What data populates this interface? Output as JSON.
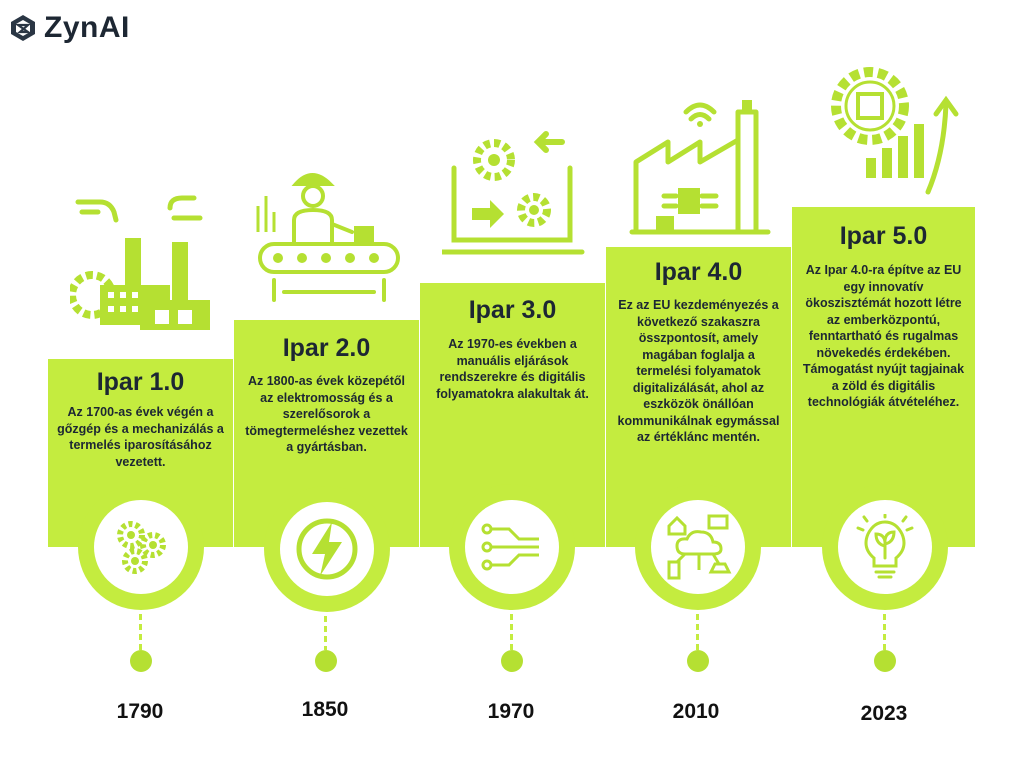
{
  "brand": {
    "name": "ZynAI"
  },
  "colors": {
    "accent": "#c4ec3f",
    "text": "#1d2733"
  },
  "stages": [
    {
      "title": "Ipar 1.0",
      "year": "1790",
      "description": "Az 1700-as évek végén a gőzgép és a mechanizálás a termelés iparosításához vezetett.",
      "illustration": "factory-gear-icon",
      "icon": "gears-icon"
    },
    {
      "title": "Ipar 2.0",
      "year": "1850",
      "description": "Az 1800-as évek közepétől az elektromosság és a szerelősorok a tömegtermeléshez vezettek a gyártásban.",
      "illustration": "assembly-line-worker-icon",
      "icon": "lightning-icon"
    },
    {
      "title": "Ipar 3.0",
      "year": "1970",
      "description": "Az 1970-es években a manuális eljárások rendszerekre és digitális folyamatokra alakultak át.",
      "illustration": "laptop-gears-icon",
      "icon": "circuit-icon"
    },
    {
      "title": "Ipar 4.0",
      "year": "2010",
      "description": "Ez az EU kezdeményezés a következő szakaszra összpontosít, amely magában foglalja a termelési folyamatok digitalizálását, ahol az eszközök önállóan kommunikálnak egymással az értéklánc mentén.",
      "illustration": "smart-factory-icon",
      "icon": "iot-cloud-icon"
    },
    {
      "title": "Ipar 5.0",
      "year": "2023",
      "description": "Az Ipar 4.0-ra építve az EU egy innovatív ökoszisztémát hozott létre az emberközpontú, fenntartható és rugalmas növekedés érdekében. Támogatást nyújt tagjainak a zöld és digitális technológiák átvételéhez.",
      "illustration": "gear-growth-chart-icon",
      "icon": "lightbulb-plant-icon"
    }
  ]
}
